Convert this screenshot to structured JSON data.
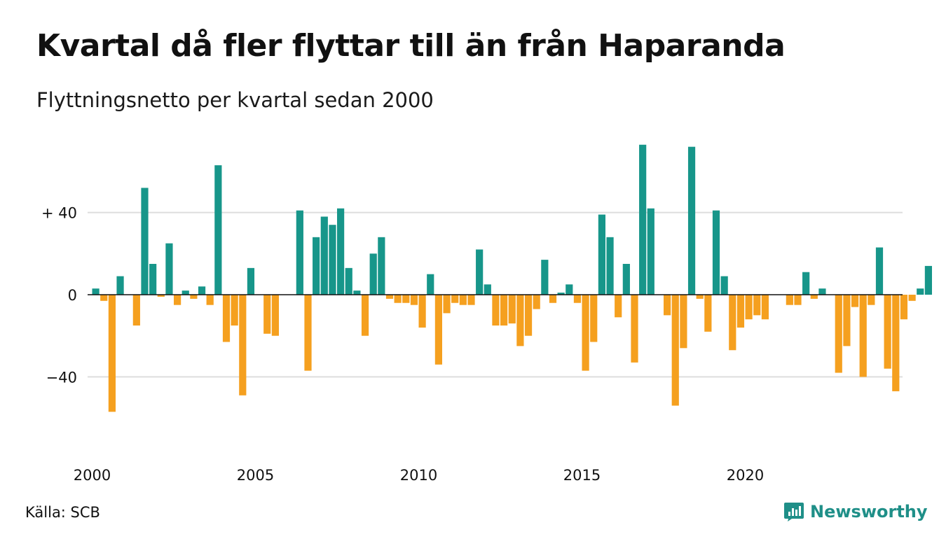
{
  "title": "Kvartal då fler flyttar till än från Haparanda",
  "subtitle": "Flyttningsnetto per kvartal sedan 2000",
  "source": "Källa: SCB",
  "brand": "Newsworthy",
  "colors": {
    "positive": "#17968a",
    "negative": "#f5a01f",
    "grid": "#dddddd",
    "zero_line": "#111111",
    "brand": "#1f8f88"
  },
  "chart_data": {
    "type": "bar",
    "title": "Kvartal då fler flyttar till än från Haparanda",
    "subtitle": "Flyttningsnetto per kvartal sedan 2000",
    "x_start": "2000 Q1",
    "x_ticks": [
      "2000",
      "2005",
      "2010",
      "2015",
      "2020"
    ],
    "y_ticks": [
      {
        "value": 40,
        "label": "+ 40"
      },
      {
        "value": 0,
        "label": "0"
      },
      {
        "value": -40,
        "label": "−40"
      }
    ],
    "ylim": [
      -74,
      74
    ],
    "grid": true,
    "values": [
      3,
      -3,
      -57,
      9,
      0,
      -15,
      52,
      15,
      -1,
      25,
      -5,
      2,
      -2,
      4,
      -5,
      63,
      -23,
      -15,
      -49,
      13,
      0,
      -19,
      -20,
      0,
      0,
      41,
      -37,
      28,
      38,
      34,
      42,
      13,
      2,
      -20,
      20,
      28,
      -2,
      -4,
      -4,
      -5,
      -16,
      10,
      -34,
      -9,
      -4,
      -5,
      -5,
      22,
      5,
      -15,
      -15,
      -14,
      -25,
      -20,
      -7,
      17,
      -4,
      1,
      5,
      -4,
      -37,
      -23,
      39,
      28,
      -11,
      15,
      -33,
      73,
      42,
      0,
      -10,
      -54,
      -26,
      72,
      -2,
      -18,
      41,
      9,
      -27,
      -16,
      -12,
      -10,
      -12,
      0,
      0,
      -5,
      -5,
      11,
      -2,
      3,
      0,
      -38,
      -25,
      -6,
      -40,
      -5,
      23,
      -36,
      -47,
      -12,
      -3,
      3,
      14
    ]
  }
}
